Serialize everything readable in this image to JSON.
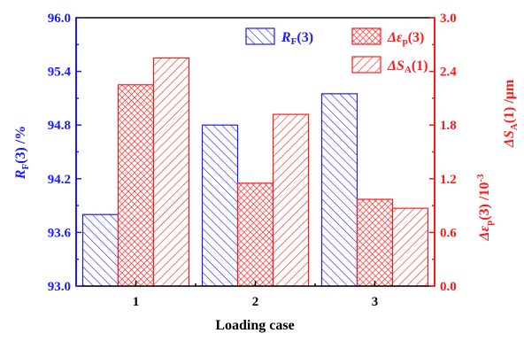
{
  "chart_data": {
    "type": "bar",
    "title": "",
    "categories": [
      "1",
      "2",
      "3"
    ],
    "xlabel": "Loading case",
    "left_axis": {
      "label_main": "R",
      "label_sub": "F",
      "label_rest": "(3) /%",
      "range": [
        93.0,
        96.0
      ],
      "ticks": [
        "93.0",
        "93.6",
        "94.2",
        "94.8",
        "95.4",
        "96.0"
      ],
      "color": "#1a1aff"
    },
    "right_axis": {
      "label_line1_main": "Δε",
      "label_line1_sub": "p",
      "label_line1_rest": "(3) /10",
      "label_line1_sup": "-3",
      "label_line2_main": "ΔS",
      "label_line2_sub": "A",
      "label_line2_rest": "(1) /μm",
      "range": [
        0.0,
        3.0
      ],
      "ticks": [
        "0.0",
        "0.6",
        "1.2",
        "1.8",
        "2.4",
        "3.0"
      ],
      "color": "#ff1a1a"
    },
    "series": [
      {
        "name_main": "R",
        "name_sub": "F",
        "name_rest": "(3)",
        "axis": "left",
        "pattern": "diag-right",
        "color": "#1a1aff",
        "values": [
          93.8,
          94.8,
          95.15
        ]
      },
      {
        "name_main": "Δε",
        "name_sub": "p",
        "name_rest": "(3)",
        "axis": "right",
        "pattern": "crosshatch",
        "color": "#ff1a1a",
        "values": [
          2.25,
          1.15,
          0.97
        ]
      },
      {
        "name_main": "ΔS",
        "name_sub": "A",
        "name_rest": "(1)",
        "axis": "right",
        "pattern": "diag-left",
        "color": "#ff1a1a",
        "values": [
          2.55,
          1.92,
          0.87
        ]
      }
    ],
    "legend_position": "top-right",
    "grid": false
  }
}
